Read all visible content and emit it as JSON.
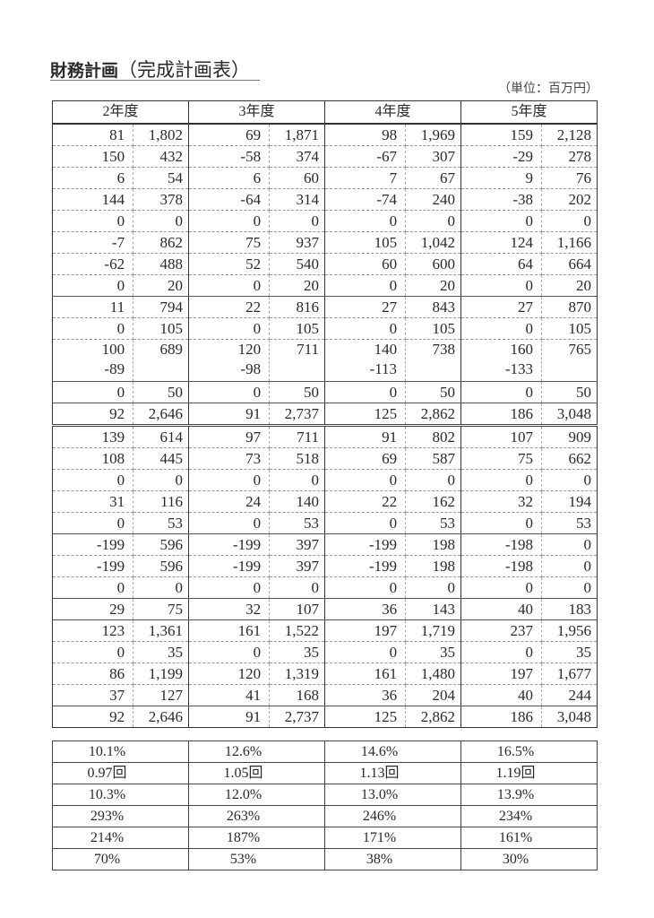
{
  "title": {
    "bold": "財務計画",
    "sub": "（完成計画表）"
  },
  "unit": "（単位：百万円）",
  "years": [
    "2年度",
    "3年度",
    "4年度",
    "5年度"
  ],
  "rows": [
    {
      "style": "",
      "cells": [
        [
          "81",
          "1,802"
        ],
        [
          "69",
          "1,871"
        ],
        [
          "98",
          "1,969"
        ],
        [
          "159",
          "2,128"
        ]
      ]
    },
    {
      "style": "",
      "cells": [
        [
          "150",
          "432"
        ],
        [
          "-58",
          "374"
        ],
        [
          "-67",
          "307"
        ],
        [
          "-29",
          "278"
        ]
      ]
    },
    {
      "style": "",
      "cells": [
        [
          "6",
          "54"
        ],
        [
          "6",
          "60"
        ],
        [
          "7",
          "67"
        ],
        [
          "9",
          "76"
        ]
      ]
    },
    {
      "style": "",
      "cells": [
        [
          "144",
          "378"
        ],
        [
          "-64",
          "314"
        ],
        [
          "-74",
          "240"
        ],
        [
          "-38",
          "202"
        ]
      ]
    },
    {
      "style": "",
      "cells": [
        [
          "0",
          "0"
        ],
        [
          "0",
          "0"
        ],
        [
          "0",
          "0"
        ],
        [
          "0",
          "0"
        ]
      ]
    },
    {
      "style": "",
      "cells": [
        [
          "-7",
          "862"
        ],
        [
          "75",
          "937"
        ],
        [
          "105",
          "1,042"
        ],
        [
          "124",
          "1,166"
        ]
      ]
    },
    {
      "style": "",
      "cells": [
        [
          "-62",
          "488"
        ],
        [
          "52",
          "540"
        ],
        [
          "60",
          "600"
        ],
        [
          "64",
          "664"
        ]
      ]
    },
    {
      "style": "solid",
      "cells": [
        [
          "0",
          "20"
        ],
        [
          "0",
          "20"
        ],
        [
          "0",
          "20"
        ],
        [
          "0",
          "20"
        ]
      ]
    },
    {
      "style": "",
      "cells": [
        [
          "11",
          "794"
        ],
        [
          "22",
          "816"
        ],
        [
          "27",
          "843"
        ],
        [
          "27",
          "870"
        ]
      ]
    },
    {
      "style": "",
      "cells": [
        [
          "0",
          "105"
        ],
        [
          "0",
          "105"
        ],
        [
          "0",
          "105"
        ],
        [
          "0",
          "105"
        ]
      ]
    },
    {
      "style": "solid tall",
      "cells": [
        [
          "100",
          "689",
          "-89"
        ],
        [
          "120",
          "711",
          "-98"
        ],
        [
          "140",
          "738",
          "-113"
        ],
        [
          "160",
          "765",
          "-133"
        ]
      ]
    },
    {
      "style": "solid",
      "cells": [
        [
          "0",
          "50"
        ],
        [
          "0",
          "50"
        ],
        [
          "0",
          "50"
        ],
        [
          "0",
          "50"
        ]
      ]
    },
    {
      "style": "dbl",
      "cells": [
        [
          "92",
          "2,646"
        ],
        [
          "91",
          "2,737"
        ],
        [
          "125",
          "2,862"
        ],
        [
          "186",
          "3,048"
        ]
      ]
    },
    {
      "style": "",
      "cells": [
        [
          "139",
          "614"
        ],
        [
          "97",
          "711"
        ],
        [
          "91",
          "802"
        ],
        [
          "107",
          "909"
        ]
      ]
    },
    {
      "style": "",
      "cells": [
        [
          "108",
          "445"
        ],
        [
          "73",
          "518"
        ],
        [
          "69",
          "587"
        ],
        [
          "75",
          "662"
        ]
      ]
    },
    {
      "style": "",
      "cells": [
        [
          "0",
          "0"
        ],
        [
          "0",
          "0"
        ],
        [
          "0",
          "0"
        ],
        [
          "0",
          "0"
        ]
      ]
    },
    {
      "style": "",
      "cells": [
        [
          "31",
          "116"
        ],
        [
          "24",
          "140"
        ],
        [
          "22",
          "162"
        ],
        [
          "32",
          "194"
        ]
      ]
    },
    {
      "style": "solid",
      "cells": [
        [
          "0",
          "53"
        ],
        [
          "0",
          "53"
        ],
        [
          "0",
          "53"
        ],
        [
          "0",
          "53"
        ]
      ]
    },
    {
      "style": "",
      "cells": [
        [
          "-199",
          "596"
        ],
        [
          "-199",
          "397"
        ],
        [
          "-199",
          "198"
        ],
        [
          "-198",
          "0"
        ]
      ]
    },
    {
      "style": "",
      "cells": [
        [
          "-199",
          "596"
        ],
        [
          "-199",
          "397"
        ],
        [
          "-199",
          "198"
        ],
        [
          "-198",
          "0"
        ]
      ]
    },
    {
      "style": "solid",
      "cells": [
        [
          "0",
          "0"
        ],
        [
          "0",
          "0"
        ],
        [
          "0",
          "0"
        ],
        [
          "0",
          "0"
        ]
      ]
    },
    {
      "style": "solid",
      "cells": [
        [
          "29",
          "75"
        ],
        [
          "32",
          "107"
        ],
        [
          "36",
          "143"
        ],
        [
          "40",
          "183"
        ]
      ]
    },
    {
      "style": "",
      "cells": [
        [
          "123",
          "1,361"
        ],
        [
          "161",
          "1,522"
        ],
        [
          "197",
          "1,719"
        ],
        [
          "237",
          "1,956"
        ]
      ]
    },
    {
      "style": "",
      "cells": [
        [
          "0",
          "35"
        ],
        [
          "0",
          "35"
        ],
        [
          "0",
          "35"
        ],
        [
          "0",
          "35"
        ]
      ]
    },
    {
      "style": "",
      "cells": [
        [
          "86",
          "1,199"
        ],
        [
          "120",
          "1,319"
        ],
        [
          "161",
          "1,480"
        ],
        [
          "197",
          "1,677"
        ]
      ]
    },
    {
      "style": "solid",
      "cells": [
        [
          "37",
          "127"
        ],
        [
          "41",
          "168"
        ],
        [
          "36",
          "204"
        ],
        [
          "40",
          "244"
        ]
      ]
    },
    {
      "style": "last",
      "cells": [
        [
          "92",
          "2,646"
        ],
        [
          "91",
          "2,737"
        ],
        [
          "125",
          "2,862"
        ],
        [
          "186",
          "3,048"
        ]
      ]
    }
  ],
  "ratios": [
    [
      "10.1%",
      "12.6%",
      "14.6%",
      "16.5%"
    ],
    [
      "0.97回",
      "1.05回",
      "1.13回",
      "1.19回"
    ],
    [
      "10.3%",
      "12.0%",
      "13.0%",
      "13.9%"
    ],
    [
      "293%",
      "263%",
      "246%",
      "234%"
    ],
    [
      "214%",
      "187%",
      "171%",
      "161%"
    ],
    [
      "70%",
      "53%",
      "38%",
      "30%"
    ]
  ]
}
